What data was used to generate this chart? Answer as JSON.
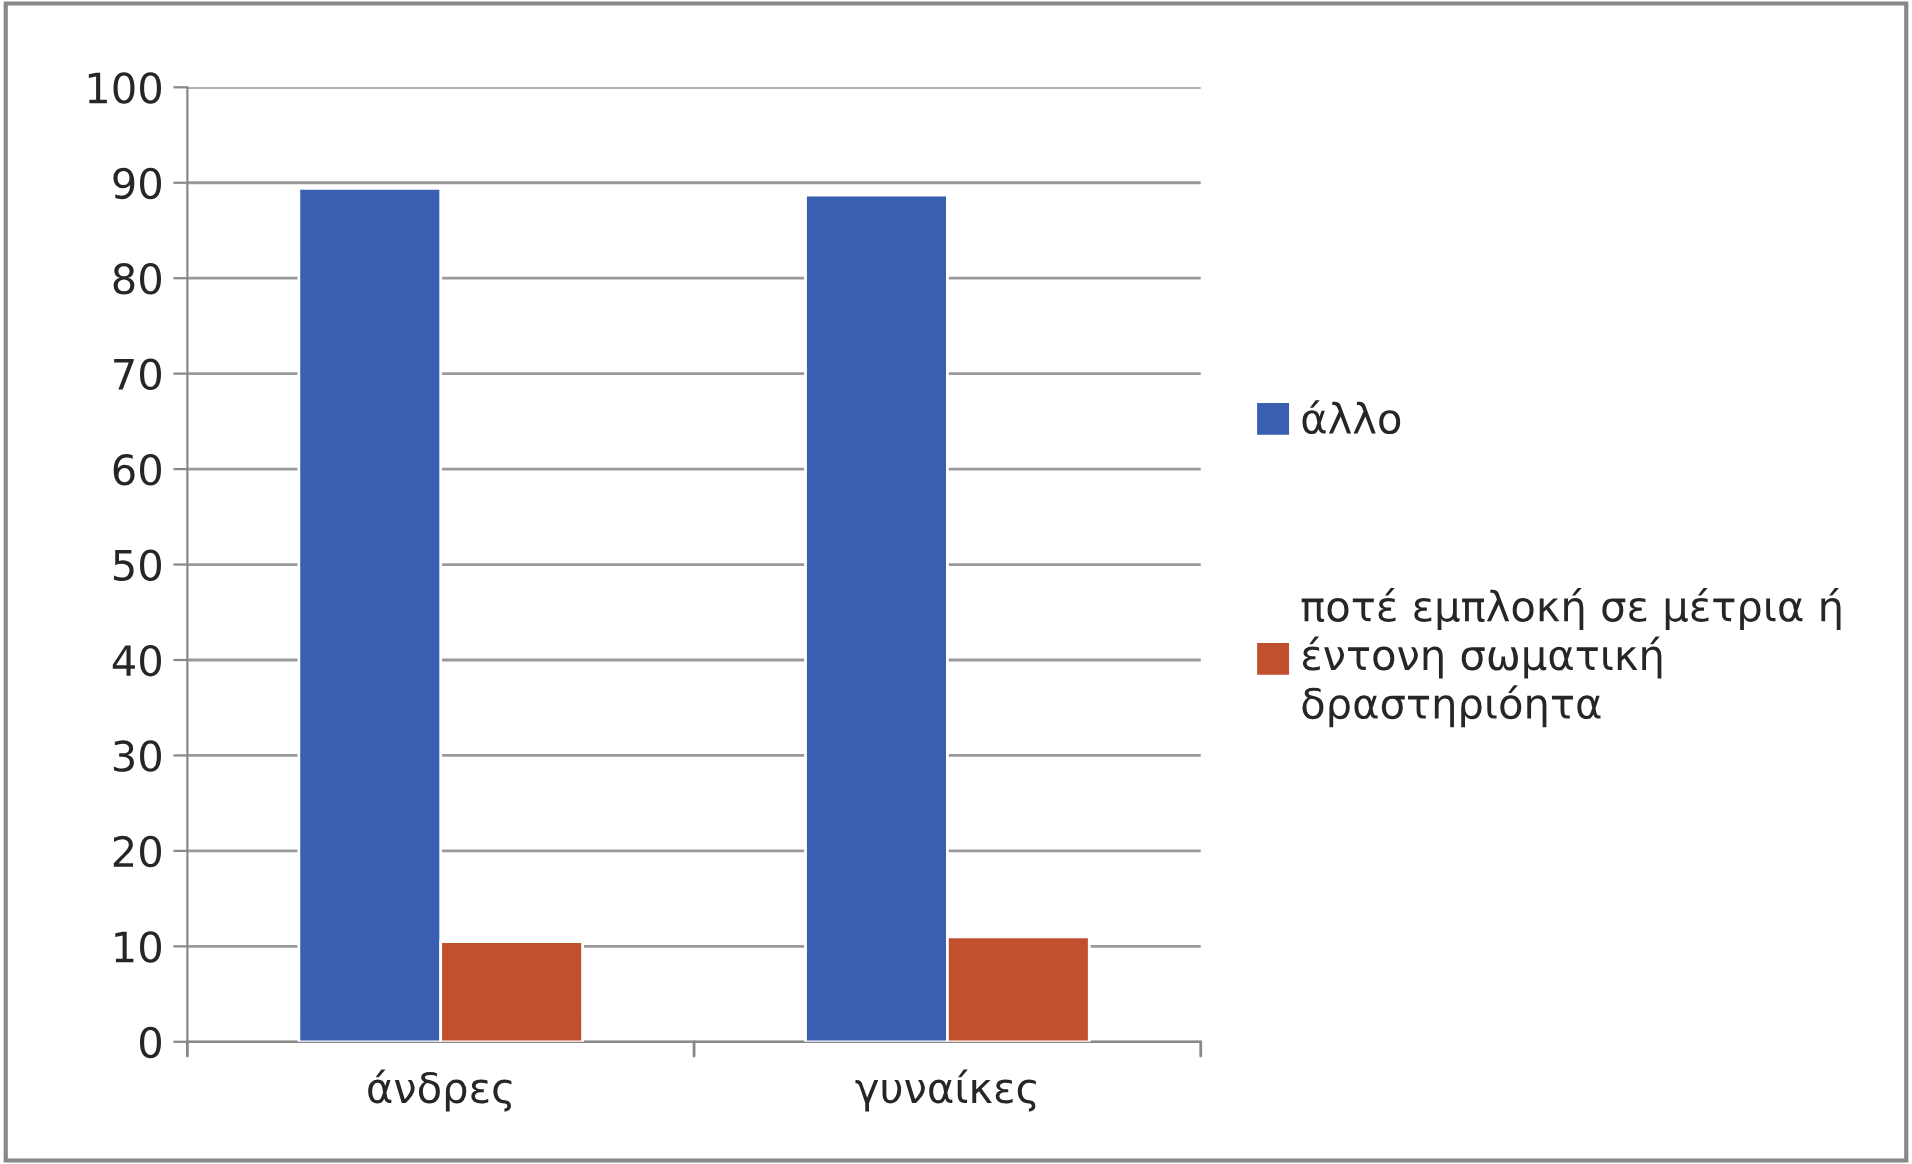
{
  "chart_data": {
    "type": "bar",
    "categories": [
      "άνδρες",
      "γυναίκες"
    ],
    "series": [
      {
        "name": "άλλο",
        "color": "#3a5fb0",
        "values": [
          89.4,
          88.7
        ]
      },
      {
        "name": "ποτέ εμπλοκή σε μέτρια ή έντονη σωματική δραστηριόητα",
        "color": "#c0502e",
        "values": [
          10.5,
          11.0
        ]
      }
    ],
    "ylim": [
      0,
      100
    ],
    "yticks": [
      0,
      10,
      20,
      30,
      40,
      50,
      60,
      70,
      80,
      90,
      100
    ],
    "grid": "y",
    "legend": "right"
  }
}
